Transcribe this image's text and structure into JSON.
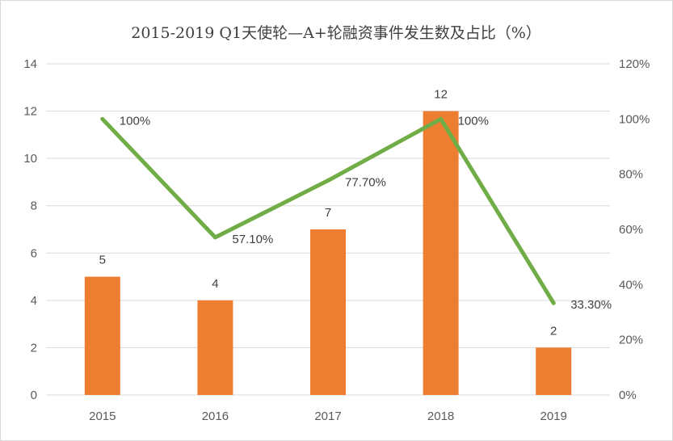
{
  "chart_data": {
    "type": "bar",
    "title": "2015-2019 Q1天使轮—A+轮融资事件发生数及占比（%）",
    "categories": [
      "2015",
      "2016",
      "2017",
      "2018",
      "2019"
    ],
    "series": [
      {
        "name": "融资事件发生数",
        "type": "bar",
        "axis": "left",
        "values": [
          5,
          4,
          7,
          12,
          2
        ],
        "labels": [
          "5",
          "4",
          "7",
          "12",
          "2"
        ],
        "color": "#ed7d31"
      },
      {
        "name": "占比",
        "type": "line",
        "axis": "right",
        "values": [
          100,
          57.1,
          77.7,
          100,
          33.3
        ],
        "labels": [
          "100%",
          "57.10%",
          "77.70%",
          "100%",
          "33.30%"
        ],
        "color": "#70ad47"
      }
    ],
    "y_left": {
      "min": 0,
      "max": 14,
      "step": 2,
      "ticks": [
        "0",
        "2",
        "4",
        "6",
        "8",
        "10",
        "12",
        "14"
      ]
    },
    "y_right": {
      "min": 0,
      "max": 120,
      "step": 20,
      "ticks": [
        "0%",
        "20%",
        "40%",
        "60%",
        "80%",
        "100%",
        "120%"
      ]
    },
    "grid": true,
    "gridColor": "#d9d9d9",
    "legend": "none"
  }
}
